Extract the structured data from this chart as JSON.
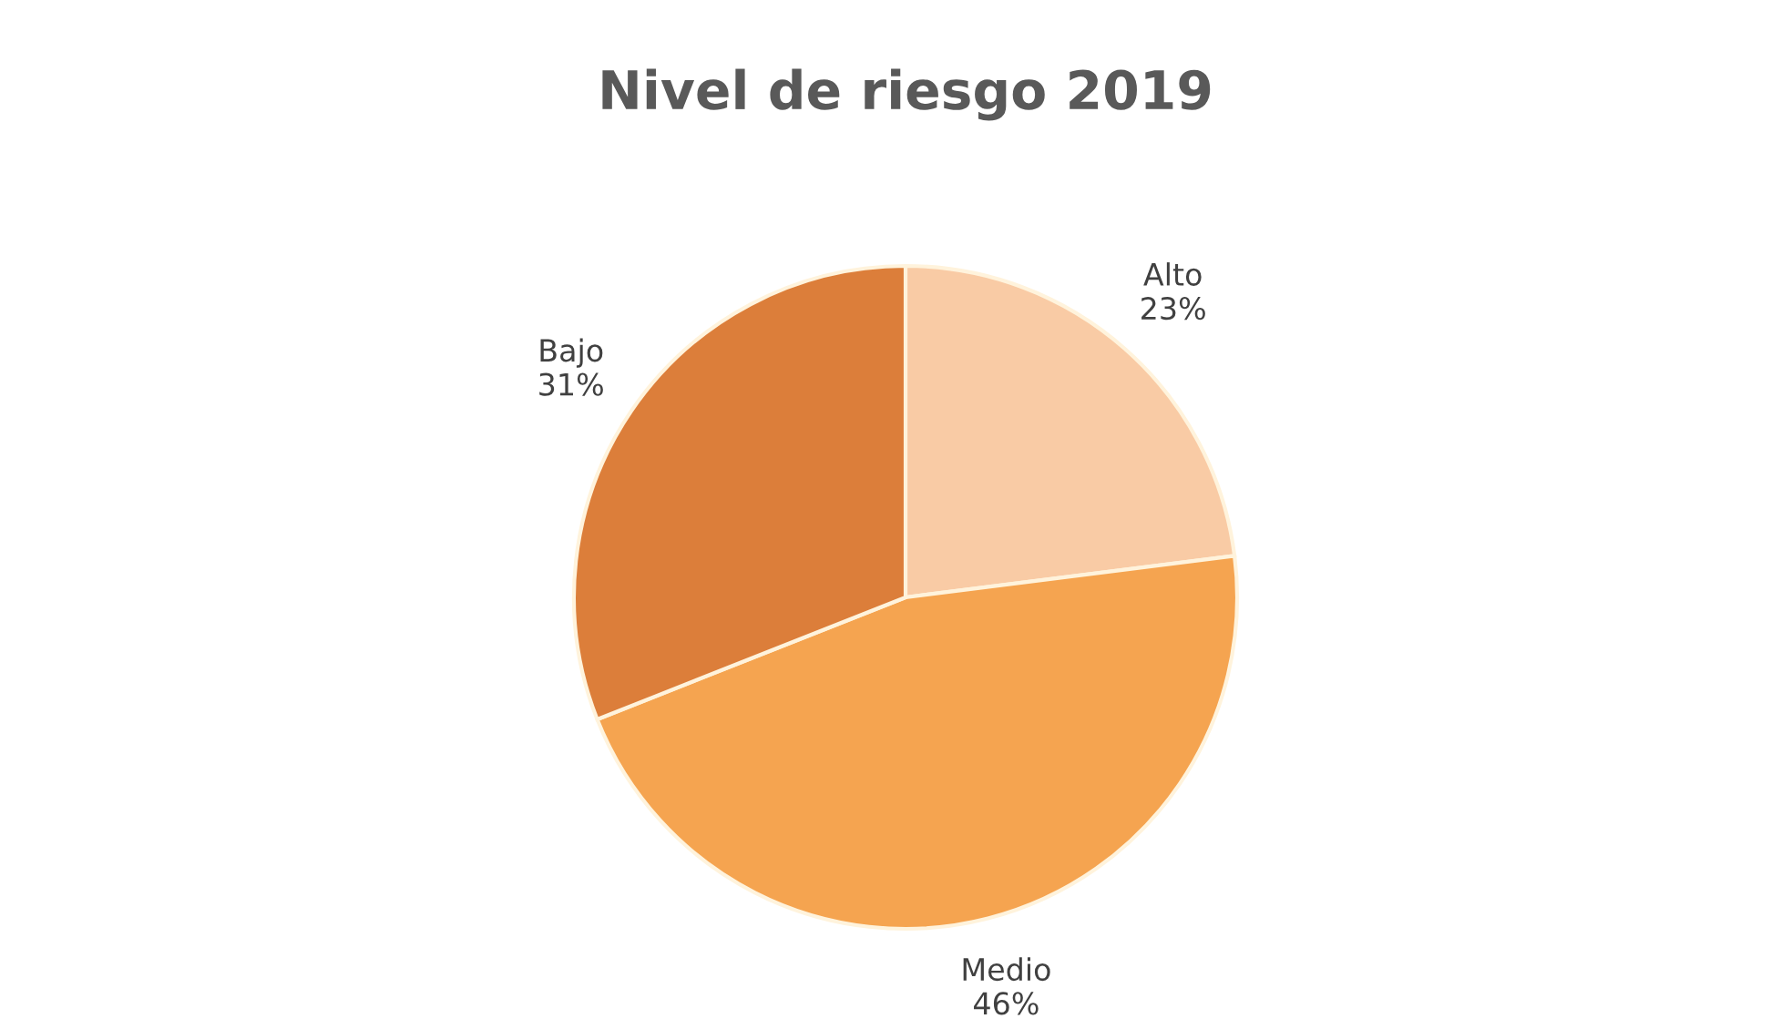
{
  "chart_data": {
    "type": "pie",
    "title": "Nivel de riesgo 2019",
    "categories": [
      "Alto",
      "Medio",
      "Bajo"
    ],
    "values": [
      23,
      46,
      31
    ],
    "value_labels": [
      "23%",
      "46%",
      "31%"
    ],
    "colors": [
      "#f9cba5",
      "#f5a450",
      "#dc7e3a"
    ],
    "legend": false
  }
}
